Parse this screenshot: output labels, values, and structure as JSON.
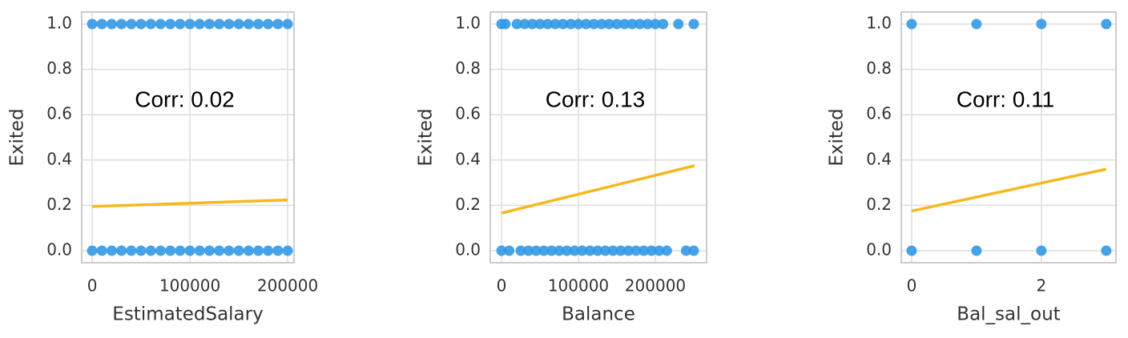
{
  "chart_data": [
    {
      "type": "scatter",
      "xlabel": "EstimatedSalary",
      "ylabel": "Exited",
      "annotation": "Corr: 0.02",
      "xlim": [
        -10700,
        206500
      ],
      "xticks": [
        0,
        100000,
        200000
      ],
      "ylim": [
        -0.053,
        1.053
      ],
      "yticks": [
        {
          "value": 0,
          "label": "0.0"
        },
        {
          "value": 0.2,
          "label": "0.2"
        },
        {
          "value": 0.4,
          "label": "0.4"
        },
        {
          "value": 0.6,
          "label": "0.6"
        },
        {
          "value": 0.8,
          "label": "0.8"
        },
        {
          "value": 1,
          "label": "1.0"
        }
      ],
      "grid": true,
      "color": "#3399e6",
      "fit_color": "#f5b91e",
      "points": {
        "x": [
          0,
          10000,
          20000,
          30000,
          40000,
          50000,
          60000,
          70000,
          80000,
          90000,
          100000,
          110000,
          120000,
          130000,
          140000,
          150000,
          160000,
          170000,
          180000,
          190000,
          200000,
          0,
          10000,
          20000,
          30000,
          40000,
          50000,
          60000,
          70000,
          80000,
          90000,
          100000,
          110000,
          120000,
          130000,
          140000,
          150000,
          160000,
          170000,
          180000,
          190000,
          200000
        ],
        "y": [
          1,
          1,
          1,
          1,
          1,
          1,
          1,
          1,
          1,
          1,
          1,
          1,
          1,
          1,
          1,
          1,
          1,
          1,
          1,
          1,
          1,
          0,
          0,
          0,
          0,
          0,
          0,
          0,
          0,
          0,
          0,
          0,
          0,
          0,
          0,
          0,
          0,
          0,
          0,
          0,
          0,
          0
        ]
      },
      "fit": {
        "x": [
          0,
          200000
        ],
        "y": [
          0.195,
          0.224
        ]
      }
    },
    {
      "type": "scatter",
      "xlabel": "Balance",
      "ylabel": "Exited",
      "annotation": "Corr: 0.13",
      "xlim": [
        -14600,
        266700
      ],
      "xticks": [
        0,
        100000,
        200000
      ],
      "ylim": [
        -0.053,
        1.053
      ],
      "yticks": [
        {
          "value": 0,
          "label": "0.0"
        },
        {
          "value": 0.2,
          "label": "0.2"
        },
        {
          "value": 0.4,
          "label": "0.4"
        },
        {
          "value": 0.6,
          "label": "0.6"
        },
        {
          "value": 0.8,
          "label": "0.8"
        },
        {
          "value": 1,
          "label": "1.0"
        }
      ],
      "grid": true,
      "color": "#3399e6",
      "fit_color": "#f5b91e",
      "points": {
        "x": [
          0,
          5000,
          20000,
          30000,
          40000,
          50000,
          60000,
          70000,
          80000,
          90000,
          100000,
          110000,
          120000,
          130000,
          140000,
          150000,
          160000,
          170000,
          180000,
          190000,
          200000,
          210000,
          230000,
          250000,
          0,
          10000,
          25000,
          35000,
          45000,
          55000,
          65000,
          75000,
          85000,
          95000,
          105000,
          115000,
          125000,
          135000,
          145000,
          155000,
          165000,
          175000,
          185000,
          195000,
          205000,
          215000,
          240000,
          250000
        ],
        "y": [
          1,
          1,
          1,
          1,
          1,
          1,
          1,
          1,
          1,
          1,
          1,
          1,
          1,
          1,
          1,
          1,
          1,
          1,
          1,
          1,
          1,
          1,
          1,
          1,
          0,
          0,
          0,
          0,
          0,
          0,
          0,
          0,
          0,
          0,
          0,
          0,
          0,
          0,
          0,
          0,
          0,
          0,
          0,
          0,
          0,
          0,
          0,
          0
        ]
      },
      "fit": {
        "x": [
          0,
          251000
        ],
        "y": [
          0.166,
          0.375
        ]
      }
    },
    {
      "type": "scatter",
      "xlabel": "Bal_sal_out",
      "ylabel": "Exited",
      "annotation": "Corr: 0.11",
      "xlim": [
        -0.16,
        3.15
      ],
      "xticks": [
        0,
        2
      ],
      "ylim": [
        -0.053,
        1.053
      ],
      "yticks": [
        {
          "value": 0,
          "label": "0.0"
        },
        {
          "value": 0.2,
          "label": "0.2"
        },
        {
          "value": 0.4,
          "label": "0.4"
        },
        {
          "value": 0.6,
          "label": "0.6"
        },
        {
          "value": 0.8,
          "label": "0.8"
        },
        {
          "value": 1,
          "label": "1.0"
        }
      ],
      "grid": true,
      "color": "#3399e6",
      "fit_color": "#f5b91e",
      "points": {
        "x": [
          0,
          1,
          2,
          3,
          0,
          1,
          2,
          3
        ],
        "y": [
          1,
          1,
          1,
          1,
          0,
          0,
          0,
          0
        ]
      },
      "fit": {
        "x": [
          0,
          3
        ],
        "y": [
          0.175,
          0.36
        ]
      }
    }
  ]
}
